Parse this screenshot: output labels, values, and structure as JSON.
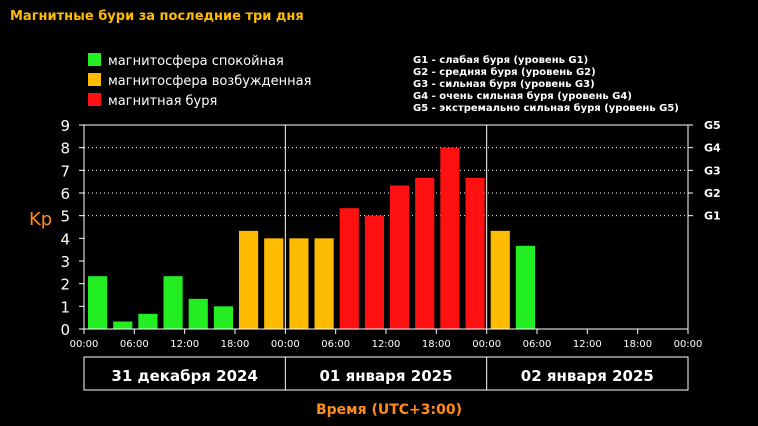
{
  "title": "Магнитные бури за последние три дня",
  "legend": [
    {
      "label": "магнитосфера спокойная",
      "color": "#22ee22"
    },
    {
      "label": "магнитосфера возбужденная",
      "color": "#ffbb00"
    },
    {
      "label": "магнитная буря",
      "color": "#ff1111"
    }
  ],
  "g_scale": [
    "G1 - слабая буря (уровень G1)",
    "G2 - средняя буря (уровень G2)",
    "G3 - сильная буря (уровень G3)",
    "G4 - очень сильная буря (уровень G4)",
    "G5 - экстремально сильная буря (уровень G5)"
  ],
  "ylabel": "Kp",
  "xlabel": "Время (UTC+3:00)",
  "days": [
    "31 декабря 2024",
    "01 января 2025",
    "02 января 2025"
  ],
  "colors": {
    "title": "#ffbb00",
    "axis_label": "#ff8c1a",
    "text": "#ffffff",
    "grid": "#ffffff",
    "quiet": "#22ee22",
    "active": "#ffbb00",
    "storm": "#ff1111"
  },
  "chart_data": {
    "type": "bar",
    "title": "Магнитные бури за последние три дня",
    "xlabel": "Время (UTC+3:00)",
    "ylabel": "Kp",
    "ylim": [
      0,
      9
    ],
    "yticks": [
      "0",
      "1",
      "2",
      "3",
      "4",
      "5",
      "6",
      "7",
      "8",
      "9"
    ],
    "xticks": [
      "00:00",
      "06:00",
      "12:00",
      "18:00",
      "00:00",
      "06:00",
      "12:00",
      "18:00",
      "00:00",
      "06:00",
      "12:00",
      "18:00",
      "00:00"
    ],
    "right_ticks": [
      {
        "label": "G1",
        "value": 5
      },
      {
        "label": "G2",
        "value": 6
      },
      {
        "label": "G3",
        "value": 7
      },
      {
        "label": "G4",
        "value": 8
      },
      {
        "label": "G5",
        "value": 9
      }
    ],
    "grid": "dotted horizontal at G-levels",
    "categories": [
      "31.12 00:00",
      "31.12 03:00",
      "31.12 06:00",
      "31.12 09:00",
      "31.12 12:00",
      "31.12 15:00",
      "31.12 18:00",
      "31.12 21:00",
      "01.01 00:00",
      "01.01 03:00",
      "01.01 06:00",
      "01.01 09:00",
      "01.01 12:00",
      "01.01 15:00",
      "01.01 18:00",
      "01.01 21:00",
      "02.01 00:00",
      "02.01 03:00"
    ],
    "values": [
      2.33,
      0.33,
      0.67,
      2.33,
      1.33,
      1.0,
      4.33,
      4.0,
      4.0,
      4.0,
      5.33,
      5.0,
      6.33,
      6.67,
      8.0,
      6.67,
      4.33,
      3.67
    ],
    "levels": [
      "quiet",
      "quiet",
      "quiet",
      "quiet",
      "quiet",
      "quiet",
      "active",
      "active",
      "active",
      "active",
      "storm",
      "storm",
      "storm",
      "storm",
      "storm",
      "storm",
      "active",
      "quiet"
    ],
    "total_slots": 24
  }
}
